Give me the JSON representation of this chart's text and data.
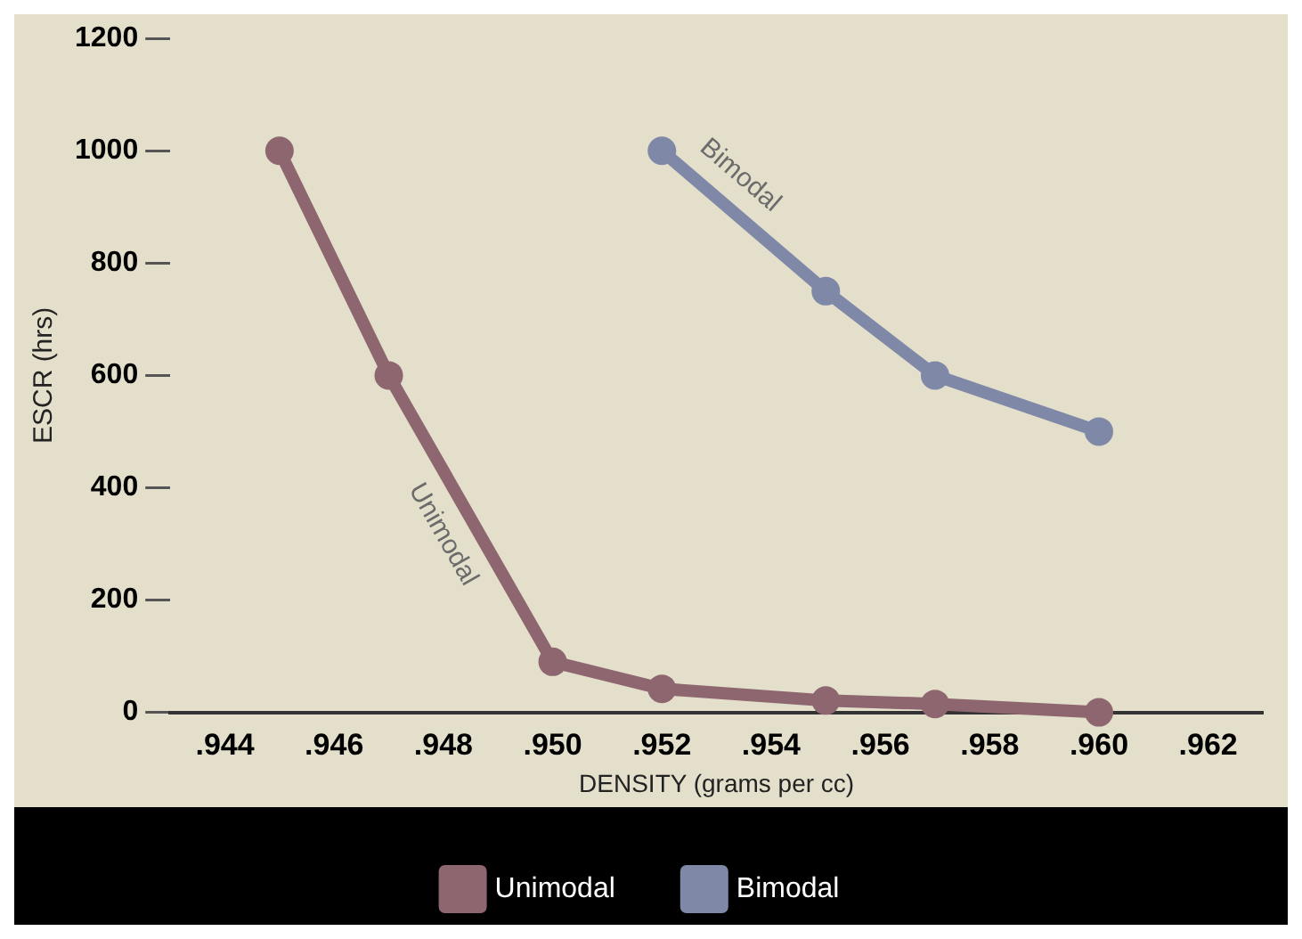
{
  "chart_data": {
    "type": "line",
    "xlabel": "DENSITY (grams per cc)",
    "ylabel": "ESCR (hrs)",
    "xlim": [
      0.943,
      0.963
    ],
    "xticks": [
      {
        "value": 0.944,
        "label": ".944"
      },
      {
        "value": 0.946,
        "label": ".946"
      },
      {
        "value": 0.948,
        "label": ".948"
      },
      {
        "value": 0.95,
        "label": ".950"
      },
      {
        "value": 0.952,
        "label": ".952"
      },
      {
        "value": 0.954,
        "label": ".954"
      },
      {
        "value": 0.956,
        "label": ".956"
      },
      {
        "value": 0.958,
        "label": ".958"
      },
      {
        "value": 0.96,
        "label": ".960"
      },
      {
        "value": 0.962,
        "label": ".962"
      }
    ],
    "ylim": [
      0,
      1200
    ],
    "yticks": [
      0,
      200,
      400,
      600,
      800,
      1000,
      1200
    ],
    "series": [
      {
        "name": "Unimodal",
        "color": "#8e6670",
        "x": [
          0.945,
          0.947,
          0.95,
          0.952,
          0.955,
          0.957,
          0.96
        ],
        "values": [
          1000,
          600,
          90,
          42,
          21,
          15,
          0
        ]
      },
      {
        "name": "Bimodal",
        "color": "#8088a8",
        "x": [
          0.952,
          0.955,
          0.957,
          0.96
        ],
        "values": [
          1000,
          750,
          600,
          500
        ]
      }
    ],
    "annotations": [
      "Unimodal",
      "Bimodal"
    ],
    "marker": "circle",
    "line_style": "solid",
    "legend": "bottom",
    "grid": false
  }
}
